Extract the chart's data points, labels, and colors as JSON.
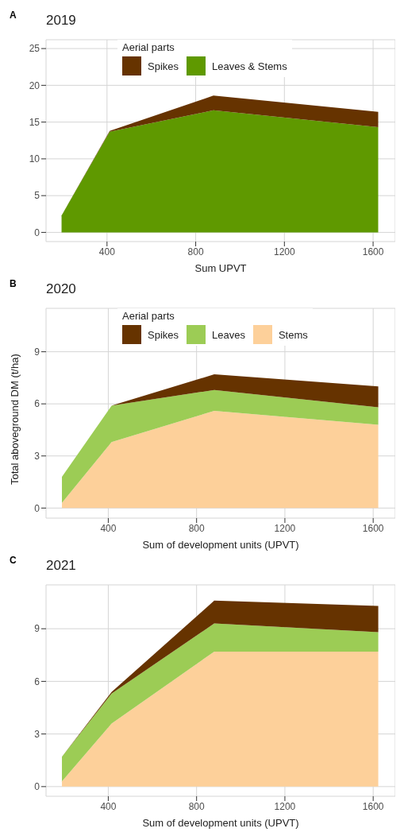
{
  "chart_data": [
    {
      "type": "area",
      "title": "2019",
      "xlabel": "Sum UPVT",
      "annotations": [
        "A"
      ],
      "legend_title": "Aerial parts",
      "legend": "top",
      "stacked": true,
      "grid": true,
      "x": [
        195,
        412,
        880,
        1623
      ],
      "xlim": [
        125,
        1700
      ],
      "xticks": [
        400,
        800,
        1200,
        1600
      ],
      "ylim": [
        -1.25,
        26.2
      ],
      "yticks": [
        0,
        5,
        10,
        15,
        20,
        25
      ],
      "series": [
        {
          "name": "Leaves & Stems",
          "color": "#5f9900",
          "values": [
            2.3,
            13.7,
            16.6,
            14.3
          ]
        },
        {
          "name": "Spikes",
          "color": "#663300",
          "values": [
            0,
            0.1,
            2.0,
            2.1
          ]
        }
      ]
    },
    {
      "type": "area",
      "title": "2020",
      "xlabel": "Sum of development units (UPVT)",
      "ylabel": "Total aboveground DM (t/ha)",
      "annotations": [
        "B"
      ],
      "legend_title": "Aerial parts",
      "legend": "top",
      "stacked": true,
      "grid": true,
      "x": [
        190,
        415,
        880,
        1623
      ],
      "xlim": [
        118,
        1700
      ],
      "xticks": [
        400,
        800,
        1200,
        1600
      ],
      "ylim": [
        -0.58,
        11.5
      ],
      "yticks": [
        0,
        3,
        6,
        9
      ],
      "series": [
        {
          "name": "Stems",
          "color": "#fdd09a",
          "values": [
            0.3,
            3.8,
            5.6,
            4.8
          ]
        },
        {
          "name": "Leaves",
          "color": "#9ccc55",
          "values": [
            1.5,
            2.1,
            1.2,
            1.0
          ]
        },
        {
          "name": "Spikes",
          "color": "#663300",
          "values": [
            0,
            0,
            0.9,
            1.2
          ]
        }
      ]
    },
    {
      "type": "area",
      "title": "2021",
      "xlabel": "Sum of development units (UPVT)",
      "annotations": [
        "C"
      ],
      "stacked": true,
      "grid": true,
      "x": [
        190,
        415,
        880,
        1623
      ],
      "xlim": [
        118,
        1700
      ],
      "xticks": [
        400,
        800,
        1200,
        1600
      ],
      "ylim": [
        -0.55,
        11.5
      ],
      "yticks": [
        0,
        3,
        6,
        9
      ],
      "series": [
        {
          "color": "#fdd09a",
          "values": [
            0.3,
            3.6,
            7.7,
            7.7
          ]
        },
        {
          "color": "#9ccc55",
          "values": [
            1.4,
            1.7,
            1.6,
            1.1
          ]
        },
        {
          "color": "#663300",
          "values": [
            0,
            0.1,
            1.3,
            1.5
          ]
        }
      ]
    }
  ]
}
